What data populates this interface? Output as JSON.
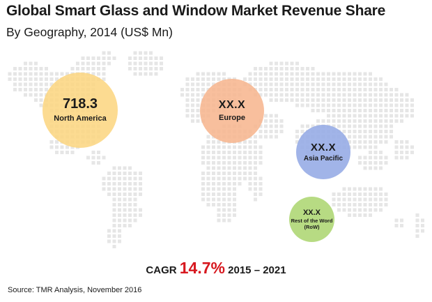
{
  "chart_data": {
    "type": "bubble",
    "title": "Global Smart Glass and Window Market Revenue Share",
    "subtitle": "By Geography, 2014 (US$ Mn)",
    "regions": [
      {
        "name": "North America",
        "value_label": "718.3",
        "value": 718.3,
        "color": "#fcd682"
      },
      {
        "name": "Europe",
        "value_label": "XX.X",
        "value": null,
        "color": "#f7b48c"
      },
      {
        "name": "Asia Pacific",
        "value_label": "XX.X",
        "value": null,
        "color": "#97ace6"
      },
      {
        "name": "Rest of the Word (RoW)",
        "name_line1": "Rest of the Word",
        "name_line2": "(RoW)",
        "value_label": "XX.X",
        "value": null,
        "color": "#b1d878"
      }
    ],
    "cagr": {
      "label": "CAGR",
      "value": "14.7%",
      "period": "2015 – 2021"
    },
    "source": "Source: TMR Analysis, November 2016"
  }
}
